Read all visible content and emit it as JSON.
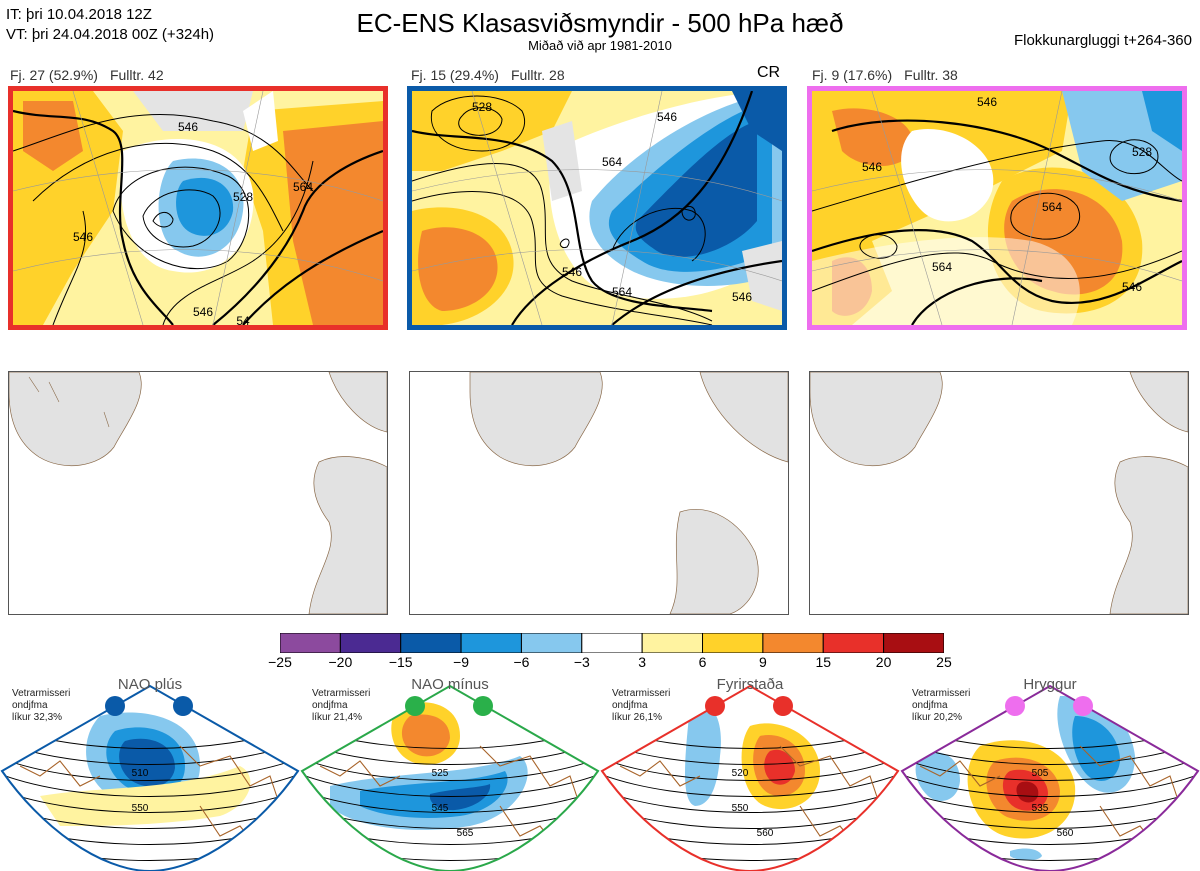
{
  "header": {
    "it_line": "IT: þri 10.04.2018 12Z",
    "vt_line": "VT: þri 24.04.2018 00Z  (+324h)",
    "title": "EC-ENS Klasasviðsmyndir - 500 hPa hæð",
    "subtitle": "Miðað við apr 1981-2010",
    "window": "Flokkunargluggi t+264-360"
  },
  "clusters": [
    {
      "fj": "Fj. 27 (52.9%)",
      "fulltr": "Fulltr. 42",
      "border_color": "#e8302a",
      "contour_labels": [
        "546",
        "528",
        "546",
        "564",
        "546",
        "54"
      ]
    },
    {
      "fj": "Fj. 15 (29.4%)",
      "fulltr": "Fulltr. 28",
      "border_color": "#0a5aa8",
      "tag": "CR",
      "contour_labels": [
        "528",
        "546",
        "564",
        "546",
        "564",
        "546"
      ]
    },
    {
      "fj": "Fj. 9 (17.6%)",
      "fulltr": "Fulltr. 38",
      "border_color": "#ee6eee",
      "contour_labels": [
        "546",
        "528",
        "546",
        "564",
        "564",
        "546"
      ]
    }
  ],
  "colorbar": {
    "labels": [
      "−25",
      "−20",
      "−15",
      "−9",
      "−6",
      "−3",
      "3",
      "6",
      "9",
      "15",
      "20",
      "25"
    ],
    "colors": [
      "#8c4a9e",
      "#4b2a92",
      "#0a5aa8",
      "#1e96dc",
      "#86c8ee",
      "#ffffff",
      "#fff3a0",
      "#ffd22a",
      "#f3882e",
      "#e8302a",
      "#a80e12"
    ]
  },
  "regimes": [
    {
      "name": "NAO plús",
      "stat": [
        "Vetrarmisseri",
        "ondjfma",
        "líkur 32,3%"
      ],
      "frame_color": "#0a5aa8",
      "dot_color": "#0a5aa8",
      "contours": [
        "510",
        "550"
      ]
    },
    {
      "name": "NAO mínus",
      "stat": [
        "Vetrarmisseri",
        "ondjfma",
        "líkur 21,4%"
      ],
      "frame_color": "#2aa84a",
      "dot_color": "#2ab04a",
      "contours": [
        "525",
        "545",
        "565"
      ]
    },
    {
      "name": "Fyrirstaða",
      "stat": [
        "Vetrarmisseri",
        "ondjfma",
        "líkur 26,1%"
      ],
      "frame_color": "#e8302a",
      "dot_color": "#e8302a",
      "contours": [
        "520",
        "550",
        "560"
      ]
    },
    {
      "name": "Hryggur",
      "stat": [
        "Vetrarmisseri",
        "ondjfma",
        "líkur 20,2%"
      ],
      "frame_color": "#8a2a9a",
      "dot_color": "#ee6eee",
      "contours": [
        "505",
        "535",
        "560"
      ]
    }
  ]
}
